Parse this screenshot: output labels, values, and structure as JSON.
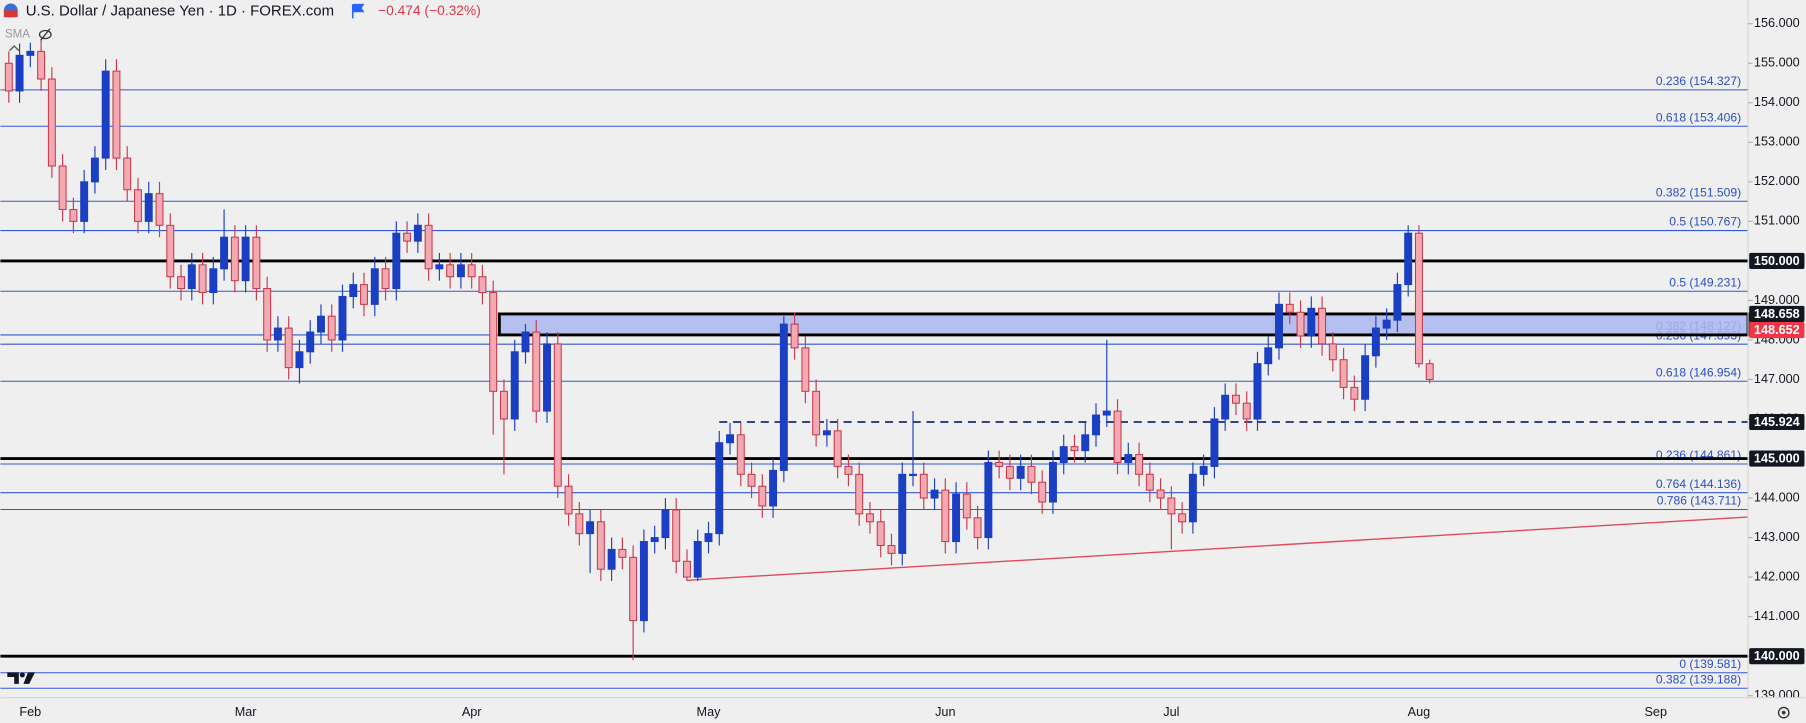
{
  "header": {
    "title": "U.S. Dollar / Japanese Yen · 1D · FOREX.com",
    "change": "−0.474 (−0.32%)",
    "indicator": "SMA"
  },
  "chart_data": {
    "type": "candlestick",
    "categories": [
      null,
      null,
      "Feb",
      null,
      null,
      null,
      null,
      null,
      null,
      null,
      null,
      null,
      null,
      null,
      null,
      null,
      null,
      null,
      null,
      null,
      null,
      null,
      "Mar",
      null,
      null,
      null,
      null,
      null,
      null,
      null,
      null,
      null,
      null,
      null,
      null,
      null,
      null,
      null,
      null,
      null,
      null,
      null,
      null,
      "Apr",
      null,
      null,
      null,
      null,
      null,
      null,
      null,
      null,
      null,
      null,
      null,
      null,
      null,
      null,
      null,
      null,
      null,
      null,
      null,
      null,
      null,
      "May",
      null,
      null,
      null,
      null,
      null,
      null,
      null,
      null,
      null,
      null,
      null,
      null,
      null,
      null,
      null,
      null,
      null,
      null,
      null,
      null,
      null,
      "Jun",
      null,
      null,
      null,
      null,
      null,
      null,
      null,
      null,
      null,
      null,
      null,
      null,
      null,
      null,
      null,
      null,
      null,
      null,
      null,
      null,
      "Jul",
      null,
      null,
      null,
      null,
      null,
      null,
      null,
      null,
      null,
      null,
      null,
      null,
      null,
      null,
      null,
      null,
      null,
      null,
      null,
      null,
      null,
      null,
      "Aug",
      null,
      null,
      null,
      null,
      null,
      null,
      null,
      null,
      null,
      null,
      null,
      null,
      null,
      null,
      null,
      null,
      null,
      null,
      null,
      null,
      null,
      "Sep"
    ],
    "candles": [
      [
        155.0,
        155.3,
        154.0,
        154.3
      ],
      [
        154.3,
        155.5,
        154.0,
        155.2
      ],
      [
        155.2,
        155.6,
        154.9,
        155.3
      ],
      [
        155.3,
        155.6,
        154.3,
        154.6
      ],
      [
        154.6,
        154.9,
        152.1,
        152.4
      ],
      [
        152.4,
        152.7,
        151.0,
        151.3
      ],
      [
        151.3,
        151.6,
        150.7,
        151.0
      ],
      [
        151.0,
        152.3,
        150.7,
        152.0
      ],
      [
        152.0,
        152.9,
        151.7,
        152.6
      ],
      [
        152.6,
        155.1,
        152.3,
        154.8
      ],
      [
        154.8,
        155.1,
        152.3,
        152.6
      ],
      [
        152.6,
        152.9,
        151.5,
        151.8
      ],
      [
        151.8,
        152.1,
        150.7,
        151.0
      ],
      [
        151.0,
        152.0,
        150.7,
        151.7
      ],
      [
        151.7,
        152.0,
        150.6,
        150.9
      ],
      [
        150.9,
        151.2,
        149.3,
        149.6
      ],
      [
        149.6,
        149.9,
        149.0,
        149.3
      ],
      [
        149.3,
        150.2,
        149.0,
        149.9
      ],
      [
        149.9,
        150.2,
        148.9,
        149.2
      ],
      [
        149.2,
        150.1,
        148.9,
        149.8
      ],
      [
        149.8,
        151.3,
        149.5,
        150.6
      ],
      [
        150.6,
        150.9,
        149.2,
        149.5
      ],
      [
        149.5,
        150.9,
        149.2,
        150.6
      ],
      [
        150.6,
        150.9,
        149.0,
        149.3
      ],
      [
        149.3,
        149.6,
        147.7,
        148.0
      ],
      [
        148.0,
        148.6,
        147.7,
        148.3
      ],
      [
        148.3,
        148.6,
        147.0,
        147.3
      ],
      [
        147.3,
        148.0,
        146.9,
        147.7
      ],
      [
        147.7,
        148.5,
        147.4,
        148.2
      ],
      [
        148.2,
        148.9,
        147.9,
        148.6
      ],
      [
        148.6,
        148.9,
        147.7,
        148.0
      ],
      [
        148.0,
        149.4,
        147.7,
        149.1
      ],
      [
        149.1,
        149.7,
        148.8,
        149.4
      ],
      [
        149.4,
        149.7,
        148.6,
        148.9
      ],
      [
        148.9,
        150.1,
        148.6,
        149.8
      ],
      [
        149.8,
        150.1,
        149.0,
        149.3
      ],
      [
        149.3,
        151.0,
        149.0,
        150.7
      ],
      [
        150.7,
        151.0,
        150.2,
        150.5
      ],
      [
        150.5,
        151.2,
        150.2,
        150.9
      ],
      [
        150.9,
        151.2,
        149.5,
        149.8
      ],
      [
        149.8,
        150.2,
        149.5,
        149.9
      ],
      [
        149.9,
        150.2,
        149.3,
        149.6
      ],
      [
        149.6,
        150.2,
        149.3,
        149.9
      ],
      [
        149.9,
        150.2,
        149.3,
        149.6
      ],
      [
        149.6,
        149.9,
        148.9,
        149.2
      ],
      [
        149.2,
        149.5,
        145.6,
        146.7
      ],
      [
        146.7,
        147.0,
        144.6,
        146.0
      ],
      [
        146.0,
        148.0,
        145.7,
        147.7
      ],
      [
        147.7,
        148.4,
        147.4,
        148.2
      ],
      [
        148.2,
        148.5,
        145.9,
        146.2
      ],
      [
        146.2,
        148.2,
        145.9,
        147.9
      ],
      [
        147.9,
        148.2,
        144.0,
        144.3
      ],
      [
        144.3,
        144.6,
        143.3,
        143.6
      ],
      [
        143.6,
        143.9,
        142.8,
        143.1
      ],
      [
        143.1,
        143.7,
        142.1,
        143.4
      ],
      [
        143.4,
        143.7,
        141.9,
        142.2
      ],
      [
        142.2,
        143.0,
        141.9,
        142.7
      ],
      [
        142.7,
        143.0,
        142.2,
        142.5
      ],
      [
        142.5,
        142.8,
        139.9,
        140.9
      ],
      [
        140.9,
        143.2,
        140.6,
        142.9
      ],
      [
        142.9,
        143.3,
        142.6,
        143.0
      ],
      [
        143.0,
        144.0,
        142.7,
        143.7
      ],
      [
        143.7,
        144.0,
        142.1,
        142.4
      ],
      [
        142.4,
        142.7,
        141.9,
        142.0
      ],
      [
        142.0,
        143.2,
        141.9,
        142.9
      ],
      [
        142.9,
        143.4,
        142.6,
        143.1
      ],
      [
        143.1,
        145.7,
        142.8,
        145.4
      ],
      [
        145.4,
        145.9,
        145.1,
        145.6
      ],
      [
        145.6,
        145.9,
        144.3,
        144.6
      ],
      [
        144.6,
        144.9,
        144.0,
        144.3
      ],
      [
        144.3,
        144.6,
        143.5,
        143.8
      ],
      [
        143.8,
        145.0,
        143.5,
        144.7
      ],
      [
        144.7,
        148.6,
        144.4,
        148.4
      ],
      [
        148.4,
        148.7,
        147.5,
        147.8
      ],
      [
        147.8,
        148.1,
        146.4,
        146.7
      ],
      [
        146.7,
        147.0,
        145.3,
        145.6
      ],
      [
        145.6,
        146.0,
        145.3,
        145.7
      ],
      [
        145.7,
        146.0,
        144.5,
        144.8
      ],
      [
        144.8,
        145.1,
        144.3,
        144.6
      ],
      [
        144.6,
        144.9,
        143.3,
        143.6
      ],
      [
        143.6,
        143.9,
        143.1,
        143.4
      ],
      [
        143.4,
        143.7,
        142.5,
        142.8
      ],
      [
        142.8,
        143.1,
        142.3,
        142.6
      ],
      [
        142.6,
        144.9,
        142.3,
        144.6
      ],
      [
        144.6,
        146.2,
        144.3,
        144.6
      ],
      [
        144.6,
        144.9,
        143.7,
        144.0
      ],
      [
        144.0,
        144.5,
        143.7,
        144.2
      ],
      [
        144.2,
        144.5,
        142.6,
        142.9
      ],
      [
        142.9,
        144.4,
        142.6,
        144.1
      ],
      [
        144.1,
        144.4,
        143.2,
        143.5
      ],
      [
        143.5,
        143.8,
        142.7,
        143.0
      ],
      [
        143.0,
        145.2,
        142.7,
        144.9
      ],
      [
        144.9,
        145.2,
        144.5,
        144.8
      ],
      [
        144.8,
        145.1,
        144.2,
        144.5
      ],
      [
        144.5,
        145.1,
        144.2,
        144.8
      ],
      [
        144.8,
        145.1,
        144.1,
        144.4
      ],
      [
        144.4,
        144.7,
        143.6,
        143.9
      ],
      [
        143.9,
        145.2,
        143.6,
        144.9
      ],
      [
        144.9,
        145.6,
        144.6,
        145.3
      ],
      [
        145.3,
        145.6,
        144.9,
        145.2
      ],
      [
        145.2,
        145.9,
        144.9,
        145.6
      ],
      [
        145.6,
        146.4,
        145.3,
        146.1
      ],
      [
        146.1,
        148.0,
        145.8,
        146.2
      ],
      [
        146.2,
        146.5,
        144.6,
        144.9
      ],
      [
        144.9,
        145.4,
        144.6,
        145.1
      ],
      [
        145.1,
        145.4,
        144.3,
        144.6
      ],
      [
        144.6,
        144.9,
        143.9,
        144.2
      ],
      [
        144.2,
        144.5,
        143.7,
        144.0
      ],
      [
        144.0,
        144.3,
        142.7,
        143.6
      ],
      [
        143.6,
        143.9,
        143.1,
        143.4
      ],
      [
        143.4,
        144.9,
        143.1,
        144.6
      ],
      [
        144.6,
        145.1,
        144.3,
        144.8
      ],
      [
        144.8,
        146.3,
        144.5,
        146.0
      ],
      [
        146.0,
        146.9,
        145.7,
        146.6
      ],
      [
        146.6,
        146.9,
        146.1,
        146.4
      ],
      [
        146.4,
        146.7,
        145.7,
        146.0
      ],
      [
        146.0,
        147.7,
        145.7,
        147.4
      ],
      [
        147.4,
        148.1,
        147.1,
        147.8
      ],
      [
        147.8,
        149.2,
        147.5,
        148.9
      ],
      [
        148.9,
        149.2,
        148.4,
        148.7
      ],
      [
        148.7,
        149.0,
        147.8,
        148.1
      ],
      [
        148.1,
        149.1,
        147.8,
        148.8
      ],
      [
        148.8,
        149.1,
        147.6,
        147.9
      ],
      [
        147.9,
        148.2,
        147.2,
        147.5
      ],
      [
        147.5,
        147.8,
        146.5,
        146.8
      ],
      [
        146.8,
        147.1,
        146.2,
        146.5
      ],
      [
        146.5,
        147.9,
        146.2,
        147.6
      ],
      [
        147.6,
        148.6,
        147.3,
        148.3
      ],
      [
        148.3,
        148.8,
        148.0,
        148.5
      ],
      [
        148.5,
        149.7,
        148.2,
        149.4
      ],
      [
        149.4,
        150.9,
        149.1,
        150.7
      ],
      [
        150.7,
        150.9,
        147.3,
        147.4
      ],
      [
        147.4,
        147.5,
        146.9,
        147.0
      ],
      null,
      null,
      null,
      null,
      null,
      null,
      null,
      null,
      null,
      null,
      null,
      null,
      null,
      null,
      null,
      null,
      null,
      null,
      null,
      null
    ],
    "up_color": "#1b3fc2",
    "down_color": "#f3a9b1",
    "down_border": "#c8394b",
    "ylim": [
      138.95,
      156.6
    ],
    "yticks": [
      {
        "value": 156,
        "label": "156.000"
      },
      {
        "value": 155,
        "label": "155.000"
      },
      {
        "value": 154,
        "label": "154.000"
      },
      {
        "value": 153,
        "label": "153.000"
      },
      {
        "value": 152,
        "label": "152.000"
      },
      {
        "value": 151,
        "label": "151.000"
      },
      {
        "value": 150,
        "label": "150.000"
      },
      {
        "value": 149,
        "label": "149.000"
      },
      {
        "value": 148,
        "label": "148.000"
      },
      {
        "value": 147,
        "label": "147.000"
      },
      {
        "value": 146,
        "label": "146.000"
      },
      {
        "value": 145,
        "label": "145.000"
      },
      {
        "value": 144,
        "label": "144.000"
      },
      {
        "value": 143,
        "label": "143.000"
      },
      {
        "value": 142,
        "label": "142.000"
      },
      {
        "value": 141,
        "label": "141.000"
      },
      {
        "value": 140,
        "label": "140.000"
      },
      {
        "value": 139,
        "label": "139.000"
      }
    ],
    "fib_color": "#3358d4",
    "fib_levels": [
      {
        "value": 154.327,
        "label": "0.236 (154.327)"
      },
      {
        "value": 153.406,
        "label": "0.618 (153.406)"
      },
      {
        "value": 151.509,
        "label": "0.382 (151.509)"
      },
      {
        "value": 150.767,
        "label": "0.5 (150.767)"
      },
      {
        "value": 149.231,
        "label": "0.5 (149.231)"
      },
      {
        "value": 148.127,
        "label": "0.382 (148.127)"
      },
      {
        "value": 147.893,
        "label": "0.236 (147.893)"
      },
      {
        "value": 146.954,
        "label": "0.618 (146.954)"
      },
      {
        "value": 144.861,
        "label": "0.236 (144.861)"
      },
      {
        "value": 144.136,
        "label": "0.764 (144.136)"
      },
      {
        "value": 143.711,
        "label": "0.786 (143.711)"
      },
      {
        "value": 139.581,
        "label": "0 (139.581)"
      },
      {
        "value": 139.188,
        "label": "0.382 (139.188)"
      }
    ],
    "key_levels": [
      150,
      145,
      140
    ],
    "zone": {
      "low": 148.127,
      "high": 148.658,
      "from_index": 46,
      "color": "#aab6f0"
    },
    "dashed_level": {
      "value": 145.924,
      "from_index": 66
    },
    "trendline": {
      "x": [
        63,
        161.5
      ],
      "y": [
        141.92,
        143.52
      ],
      "color": "#e04a5a"
    },
    "tag_color": "#131722",
    "price_tags": [
      {
        "value": 150,
        "label": "150.000"
      },
      {
        "value": 148.658,
        "label": "148.658"
      },
      {
        "value": 148.652,
        "label": "148.652",
        "color": "#f23645"
      },
      {
        "value": 145.924,
        "label": "145.924"
      },
      {
        "value": 145,
        "label": "145.000"
      },
      {
        "value": 140,
        "label": "140.000"
      }
    ]
  }
}
